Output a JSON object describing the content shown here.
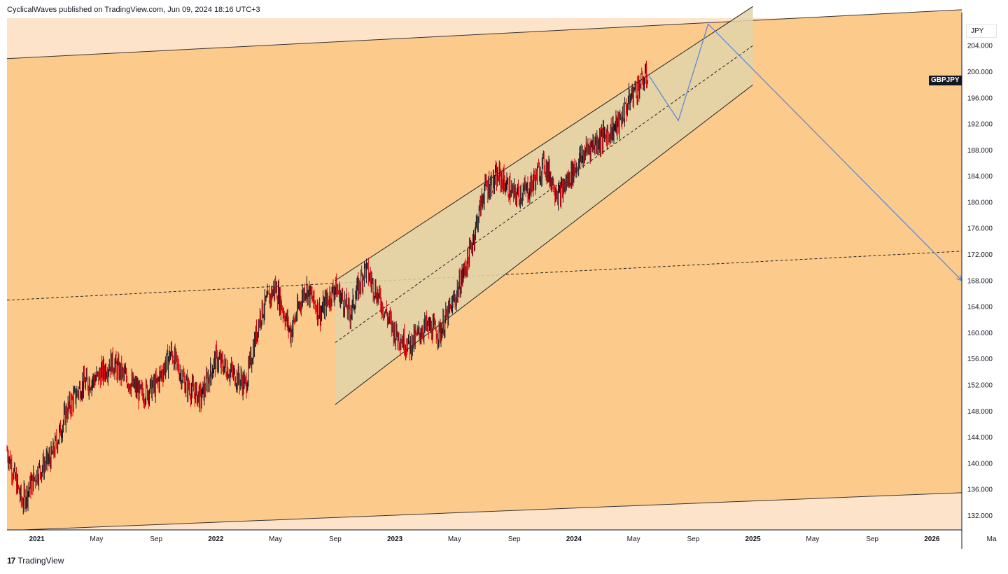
{
  "header": {
    "published": "CyclicalWaves published on TradingView.com, Jun 09, 2024 18:16 UTC+3"
  },
  "footer": {
    "brand": "TradingView",
    "logo": "17"
  },
  "price_axis": {
    "currency": "JPY"
  },
  "symbol": "GBPJPY",
  "colors": {
    "background_band": "#fccb8c",
    "outer_band": "#fde3c9",
    "channel_fill": "#e2d5a9",
    "candle_up": "#131722",
    "candle_down": "#e0000a",
    "projection": "#5b8bd6"
  },
  "chart_data": {
    "type": "line",
    "title": "",
    "xlabel": "",
    "ylabel": "",
    "ylim": [
      129.8,
      208.2
    ],
    "x_ticks": [
      "2021",
      "May",
      "Sep",
      "2022",
      "May",
      "Sep",
      "2023",
      "May",
      "Sep",
      "2024",
      "May",
      "Sep",
      "2025",
      "May",
      "Sep",
      "2026",
      "Ma"
    ],
    "y_ticks": [
      "204.000",
      "200.000",
      "196.000",
      "192.000",
      "188.000",
      "184.000",
      "180.000",
      "176.000",
      "172.000",
      "168.000",
      "164.000",
      "160.000",
      "156.000",
      "152.000",
      "148.000",
      "144.000",
      "140.000",
      "136.000",
      "132.000"
    ],
    "series": [
      {
        "values": [
          {
            "x": "2020-11",
            "y": 142.0
          },
          {
            "x": "2020-12",
            "y": 134.0
          },
          {
            "x": "2021-01",
            "y": 138.5
          },
          {
            "x": "2021-02",
            "y": 141.0
          },
          {
            "x": "2021-03",
            "y": 148.0
          },
          {
            "x": "2021-04",
            "y": 152.0
          },
          {
            "x": "2021-05",
            "y": 153.0
          },
          {
            "x": "2021-06",
            "y": 155.5
          },
          {
            "x": "2021-07",
            "y": 153.0
          },
          {
            "x": "2021-08",
            "y": 150.5
          },
          {
            "x": "2021-09",
            "y": 152.0
          },
          {
            "x": "2021-10",
            "y": 157.0
          },
          {
            "x": "2021-11",
            "y": 152.0
          },
          {
            "x": "2021-12",
            "y": 150.0
          },
          {
            "x": "2022-01",
            "y": 156.0
          },
          {
            "x": "2022-02",
            "y": 154.0
          },
          {
            "x": "2022-03",
            "y": 152.0
          },
          {
            "x": "2022-04",
            "y": 163.0
          },
          {
            "x": "2022-05",
            "y": 167.0
          },
          {
            "x": "2022-06",
            "y": 160.0
          },
          {
            "x": "2022-07",
            "y": 167.0
          },
          {
            "x": "2022-08",
            "y": 163.0
          },
          {
            "x": "2022-09",
            "y": 167.0
          },
          {
            "x": "2022-10",
            "y": 163.0
          },
          {
            "x": "2022-11",
            "y": 170.0
          },
          {
            "x": "2022-12",
            "y": 165.0
          },
          {
            "x": "2023-01",
            "y": 160.0
          },
          {
            "x": "2023-02",
            "y": 158.0
          },
          {
            "x": "2023-03",
            "y": 161.0
          },
          {
            "x": "2023-04",
            "y": 160.0
          },
          {
            "x": "2023-05",
            "y": 165.0
          },
          {
            "x": "2023-06",
            "y": 172.0
          },
          {
            "x": "2023-07",
            "y": 182.0
          },
          {
            "x": "2023-08",
            "y": 184.0
          },
          {
            "x": "2023-09",
            "y": 181.0
          },
          {
            "x": "2023-10",
            "y": 182.0
          },
          {
            "x": "2023-11",
            "y": 186.0
          },
          {
            "x": "2023-12",
            "y": 181.0
          },
          {
            "x": "2024-01",
            "y": 185.0
          },
          {
            "x": "2024-02",
            "y": 188.5
          },
          {
            "x": "2024-03",
            "y": 190.0
          },
          {
            "x": "2024-04",
            "y": 192.0
          },
          {
            "x": "2024-05",
            "y": 197.0
          },
          {
            "x": "2024-06",
            "y": 199.5
          }
        ]
      },
      {
        "values": [
          {
            "x": "2024-06",
            "y": 199.5
          },
          {
            "x": "2024-08",
            "y": 192.5
          },
          {
            "x": "2024-10",
            "y": 207.3
          },
          {
            "x": "2026-03",
            "y": 168.0
          }
        ]
      }
    ],
    "annotations": {
      "ascending_channel": {
        "start": "2022-09",
        "end": "2025-01",
        "lower_start": 149.0,
        "upper_start": 168.0,
        "lower_end": 198.0,
        "upper_end": 210.0
      },
      "horizontal_dashed_trend": {
        "start_y": 165.0,
        "end_y": 172.5
      },
      "outer_band_upper": {
        "start_y": 202.0,
        "end_y": 209.5
      },
      "outer_band_lower": {
        "start_y": 129.7,
        "end_y": 135.5
      }
    },
    "grid": false,
    "legend": "none"
  }
}
